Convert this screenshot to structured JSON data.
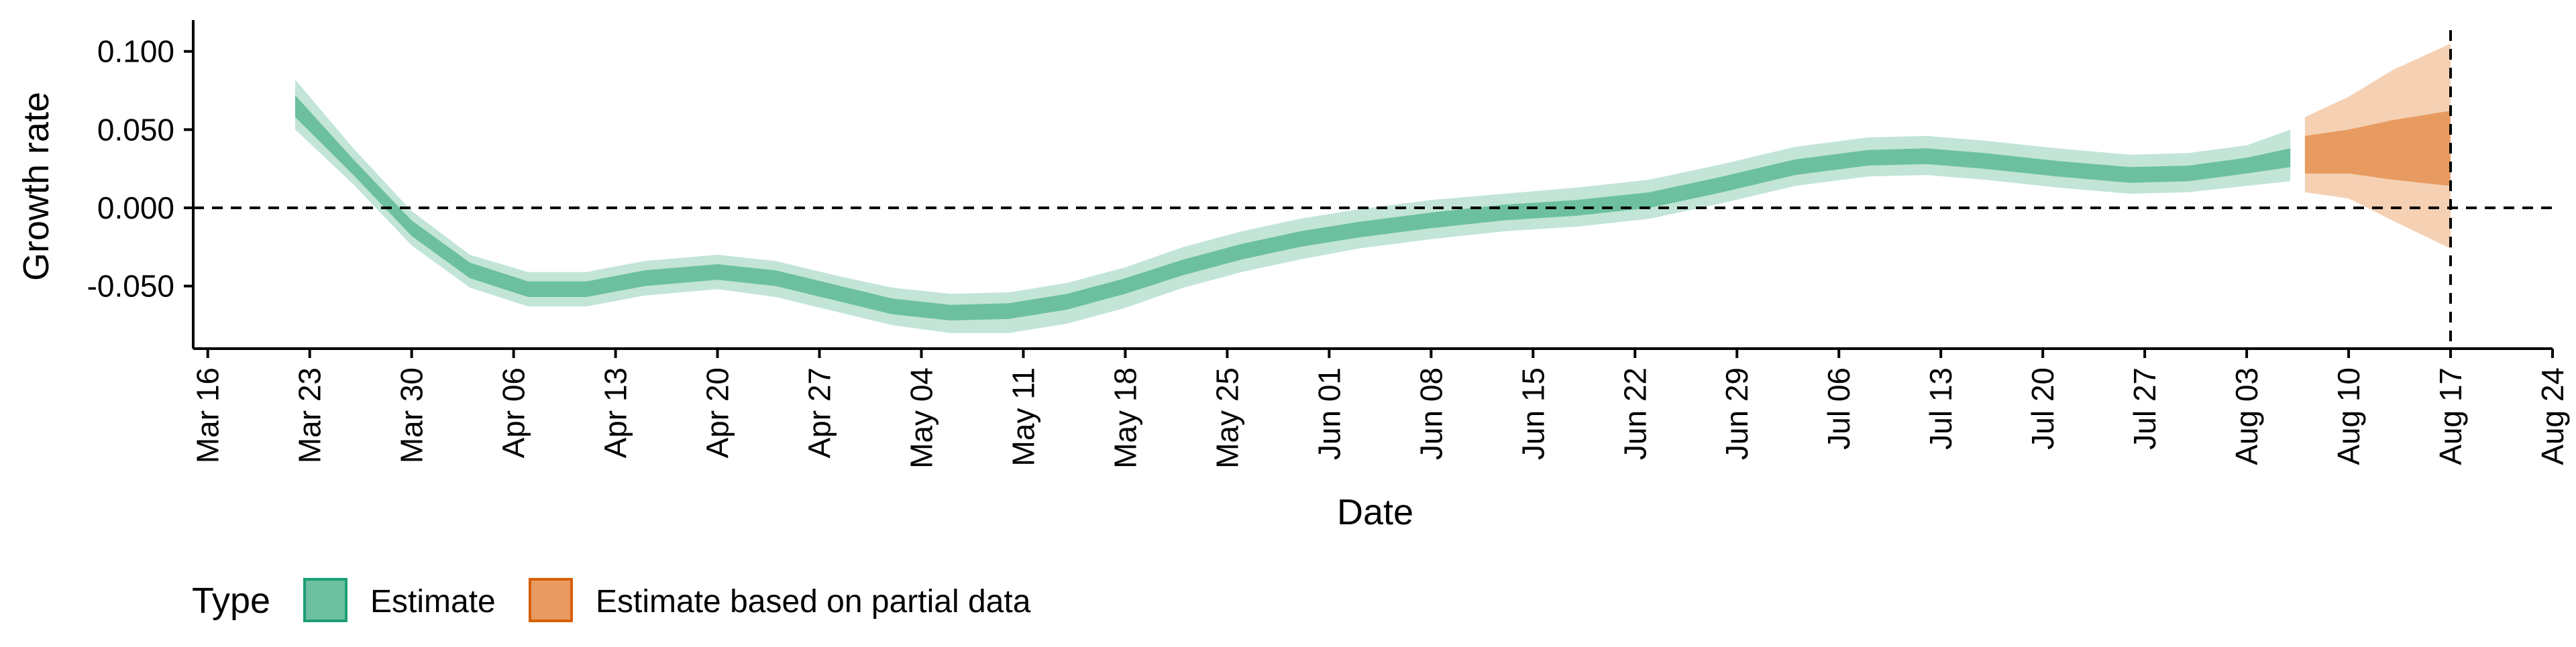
{
  "chart_data": {
    "type": "area",
    "title": "",
    "xlabel": "Date",
    "ylabel": "Growth rate",
    "x_range": [
      "2020-03-15",
      "2020-08-24"
    ],
    "ylim": [
      -0.09,
      0.12
    ],
    "x_ticks": [
      "Mar 16",
      "Mar 23",
      "Mar 30",
      "Apr 06",
      "Apr 13",
      "Apr 20",
      "Apr 27",
      "May 04",
      "May 11",
      "May 18",
      "May 25",
      "Jun 01",
      "Jun 08",
      "Jun 15",
      "Jun 22",
      "Jun 29",
      "Jul 06",
      "Jul 13",
      "Jul 20",
      "Jul 27",
      "Aug 03",
      "Aug 10",
      "Aug 17",
      "Aug 24"
    ],
    "x_tick_dates": [
      "2020-03-16",
      "2020-03-23",
      "2020-03-30",
      "2020-04-06",
      "2020-04-13",
      "2020-04-20",
      "2020-04-27",
      "2020-05-04",
      "2020-05-11",
      "2020-05-18",
      "2020-05-25",
      "2020-06-01",
      "2020-06-08",
      "2020-06-15",
      "2020-06-22",
      "2020-06-29",
      "2020-07-06",
      "2020-07-13",
      "2020-07-20",
      "2020-07-27",
      "2020-08-03",
      "2020-08-10",
      "2020-08-17",
      "2020-08-24"
    ],
    "y_ticks": [
      0.1,
      0.05,
      0.0,
      -0.05
    ],
    "y_tick_labels": [
      "0.100",
      "0.050",
      "0.000",
      "-0.050"
    ],
    "reference_lines": {
      "horizontal_y": 0.0,
      "vertical_date": "2020-08-17"
    },
    "grid": false,
    "legend": {
      "title": "Type",
      "position": "bottom-left"
    },
    "colors": {
      "estimate_inner": "#6cc0a0",
      "estimate_outer": "#c2e5d7",
      "partial_inner": "#e89b60",
      "partial_outer": "#f5d0b3",
      "estimate_key_fill": "#6cc0a0",
      "estimate_key_border": "#1b9e77",
      "partial_key_fill": "#e89b60",
      "partial_key_border": "#d95f02"
    },
    "series": [
      {
        "name": "Estimate",
        "points": [
          {
            "date": "2020-03-22",
            "median": 0.065,
            "lower_50": 0.058,
            "upper_50": 0.072,
            "lower_90": 0.05,
            "upper_90": 0.082
          },
          {
            "date": "2020-03-26",
            "median": 0.026,
            "lower_50": 0.021,
            "upper_50": 0.031,
            "lower_90": 0.015,
            "upper_90": 0.038
          },
          {
            "date": "2020-03-30",
            "median": -0.013,
            "lower_50": -0.018,
            "upper_50": -0.008,
            "lower_90": -0.024,
            "upper_90": -0.002
          },
          {
            "date": "2020-04-03",
            "median": -0.04,
            "lower_50": -0.045,
            "upper_50": -0.035,
            "lower_90": -0.051,
            "upper_90": -0.03
          },
          {
            "date": "2020-04-07",
            "median": -0.052,
            "lower_50": -0.057,
            "upper_50": -0.047,
            "lower_90": -0.063,
            "upper_90": -0.041
          },
          {
            "date": "2020-04-11",
            "median": -0.052,
            "lower_50": -0.057,
            "upper_50": -0.047,
            "lower_90": -0.063,
            "upper_90": -0.041
          },
          {
            "date": "2020-04-15",
            "median": -0.045,
            "lower_50": -0.05,
            "upper_50": -0.04,
            "lower_90": -0.056,
            "upper_90": -0.034
          },
          {
            "date": "2020-04-20",
            "median": -0.041,
            "lower_50": -0.046,
            "upper_50": -0.036,
            "lower_90": -0.052,
            "upper_90": -0.03
          },
          {
            "date": "2020-04-24",
            "median": -0.045,
            "lower_50": -0.05,
            "upper_50": -0.04,
            "lower_90": -0.057,
            "upper_90": -0.034
          },
          {
            "date": "2020-04-28",
            "median": -0.054,
            "lower_50": -0.059,
            "upper_50": -0.049,
            "lower_90": -0.066,
            "upper_90": -0.043
          },
          {
            "date": "2020-05-02",
            "median": -0.063,
            "lower_50": -0.068,
            "upper_50": -0.058,
            "lower_90": -0.075,
            "upper_90": -0.051
          },
          {
            "date": "2020-05-06",
            "median": -0.067,
            "lower_50": -0.072,
            "upper_50": -0.062,
            "lower_90": -0.08,
            "upper_90": -0.055
          },
          {
            "date": "2020-05-10",
            "median": -0.066,
            "lower_50": -0.071,
            "upper_50": -0.061,
            "lower_90": -0.08,
            "upper_90": -0.054
          },
          {
            "date": "2020-05-14",
            "median": -0.06,
            "lower_50": -0.065,
            "upper_50": -0.055,
            "lower_90": -0.074,
            "upper_90": -0.048
          },
          {
            "date": "2020-05-18",
            "median": -0.05,
            "lower_50": -0.055,
            "upper_50": -0.045,
            "lower_90": -0.064,
            "upper_90": -0.038
          },
          {
            "date": "2020-05-22",
            "median": -0.038,
            "lower_50": -0.043,
            "upper_50": -0.033,
            "lower_90": -0.051,
            "upper_90": -0.025
          },
          {
            "date": "2020-05-26",
            "median": -0.028,
            "lower_50": -0.033,
            "upper_50": -0.023,
            "lower_90": -0.041,
            "upper_90": -0.015
          },
          {
            "date": "2020-05-30",
            "median": -0.02,
            "lower_50": -0.025,
            "upper_50": -0.015,
            "lower_90": -0.033,
            "upper_90": -0.007
          },
          {
            "date": "2020-06-03",
            "median": -0.014,
            "lower_50": -0.019,
            "upper_50": -0.009,
            "lower_90": -0.026,
            "upper_90": -0.001
          },
          {
            "date": "2020-06-08",
            "median": -0.008,
            "lower_50": -0.013,
            "upper_50": -0.003,
            "lower_90": -0.02,
            "upper_90": 0.005
          },
          {
            "date": "2020-06-13",
            "median": -0.003,
            "lower_50": -0.008,
            "upper_50": 0.002,
            "lower_90": -0.015,
            "upper_90": 0.009
          },
          {
            "date": "2020-06-18",
            "median": 0.0,
            "lower_50": -0.005,
            "upper_50": 0.005,
            "lower_90": -0.012,
            "upper_90": 0.013
          },
          {
            "date": "2020-06-23",
            "median": 0.005,
            "lower_50": 0.0,
            "upper_50": 0.01,
            "lower_90": -0.007,
            "upper_90": 0.018
          },
          {
            "date": "2020-06-28",
            "median": 0.015,
            "lower_50": 0.01,
            "upper_50": 0.02,
            "lower_90": 0.003,
            "upper_90": 0.028
          },
          {
            "date": "2020-07-03",
            "median": 0.026,
            "lower_50": 0.021,
            "upper_50": 0.031,
            "lower_90": 0.014,
            "upper_90": 0.039
          },
          {
            "date": "2020-07-08",
            "median": 0.032,
            "lower_50": 0.027,
            "upper_50": 0.037,
            "lower_90": 0.02,
            "upper_90": 0.045
          },
          {
            "date": "2020-07-12",
            "median": 0.033,
            "lower_50": 0.028,
            "upper_50": 0.038,
            "lower_90": 0.021,
            "upper_90": 0.046
          },
          {
            "date": "2020-07-16",
            "median": 0.03,
            "lower_50": 0.025,
            "upper_50": 0.035,
            "lower_90": 0.018,
            "upper_90": 0.043
          },
          {
            "date": "2020-07-21",
            "median": 0.025,
            "lower_50": 0.02,
            "upper_50": 0.03,
            "lower_90": 0.013,
            "upper_90": 0.038
          },
          {
            "date": "2020-07-26",
            "median": 0.021,
            "lower_50": 0.016,
            "upper_50": 0.026,
            "lower_90": 0.009,
            "upper_90": 0.034
          },
          {
            "date": "2020-07-30",
            "median": 0.022,
            "lower_50": 0.017,
            "upper_50": 0.027,
            "lower_90": 0.01,
            "upper_90": 0.035
          },
          {
            "date": "2020-08-03",
            "median": 0.027,
            "lower_50": 0.022,
            "upper_50": 0.032,
            "lower_90": 0.014,
            "upper_90": 0.04
          },
          {
            "date": "2020-08-06",
            "median": 0.032,
            "lower_50": 0.026,
            "upper_50": 0.038,
            "lower_90": 0.017,
            "upper_90": 0.05
          }
        ]
      },
      {
        "name": "Estimate based on partial data",
        "points": [
          {
            "date": "2020-08-07",
            "median": 0.034,
            "lower_50": 0.022,
            "upper_50": 0.046,
            "lower_90": 0.01,
            "upper_90": 0.058
          },
          {
            "date": "2020-08-10",
            "median": 0.036,
            "lower_50": 0.022,
            "upper_50": 0.05,
            "lower_90": 0.006,
            "upper_90": 0.071
          },
          {
            "date": "2020-08-13",
            "median": 0.037,
            "lower_50": 0.018,
            "upper_50": 0.056,
            "lower_90": -0.008,
            "upper_90": 0.088
          },
          {
            "date": "2020-08-17",
            "median": 0.038,
            "lower_50": 0.014,
            "upper_50": 0.062,
            "lower_90": -0.026,
            "upper_90": 0.105
          }
        ]
      }
    ]
  }
}
